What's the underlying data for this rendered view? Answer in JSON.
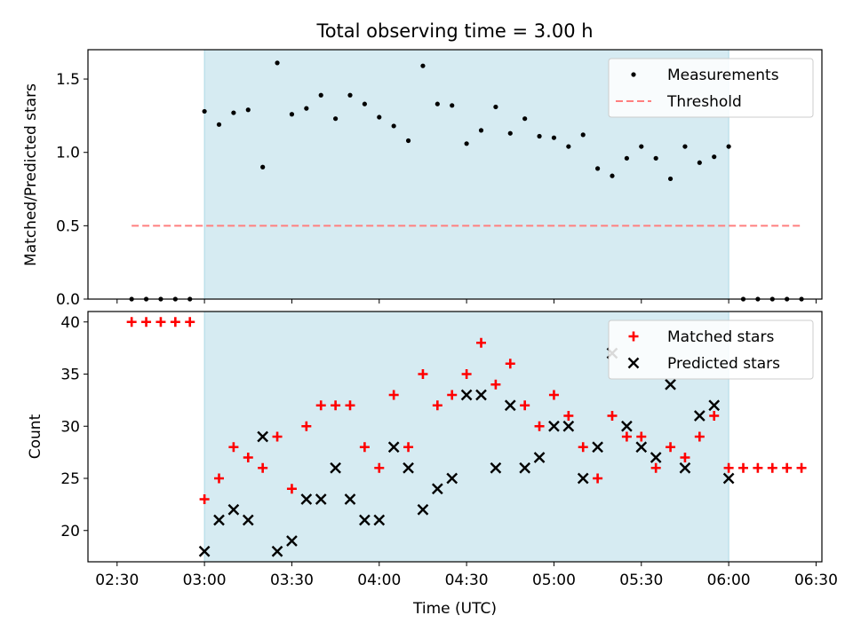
{
  "title": "Total observing time = 3.00 h",
  "colors": {
    "window": "#add8e6",
    "threshold": "#ff7f7f",
    "matched": "#ff0000",
    "predicted": "#000000",
    "measurement": "#000000"
  },
  "chart_data": [
    {
      "type": "scatter",
      "ylabel": "Matched/Predicted stars",
      "ylim": [
        0,
        1.7
      ],
      "yticks": [
        0.0,
        0.5,
        1.0,
        1.5
      ],
      "ytick_labels": [
        "0.0",
        "0.5",
        "1.0",
        "1.5"
      ],
      "xlim": [
        "02:20",
        "06:32"
      ],
      "observing_window": [
        "03:00",
        "06:00"
      ],
      "legend_position": "top-right",
      "series": [
        {
          "name": "Measurements",
          "marker": "dot",
          "x": [
            "02:35",
            "02:40",
            "02:45",
            "02:50",
            "02:55",
            "03:00",
            "03:05",
            "03:10",
            "03:15",
            "03:20",
            "03:25",
            "03:30",
            "03:35",
            "03:40",
            "03:45",
            "03:50",
            "03:55",
            "04:00",
            "04:05",
            "04:10",
            "04:15",
            "04:20",
            "04:25",
            "04:30",
            "04:35",
            "04:40",
            "04:45",
            "04:50",
            "04:55",
            "05:00",
            "05:05",
            "05:10",
            "05:15",
            "05:20",
            "05:25",
            "05:30",
            "05:35",
            "05:40",
            "05:45",
            "05:50",
            "05:55",
            "06:00",
            "06:05",
            "06:10",
            "06:15",
            "06:20",
            "06:25"
          ],
          "y": [
            0,
            0,
            0,
            0,
            0,
            1.28,
            1.19,
            1.27,
            1.29,
            0.9,
            1.61,
            1.26,
            1.3,
            1.39,
            1.23,
            1.39,
            1.33,
            1.24,
            1.18,
            1.08,
            1.59,
            1.33,
            1.32,
            1.06,
            1.15,
            1.31,
            1.13,
            1.23,
            1.11,
            1.1,
            1.04,
            1.12,
            0.89,
            0.84,
            0.96,
            1.04,
            0.96,
            0.82,
            1.04,
            0.93,
            0.97,
            1.04,
            0,
            0,
            0,
            0,
            0
          ]
        },
        {
          "name": "Threshold",
          "marker": "dashed-line",
          "x": [
            "02:35",
            "06:25"
          ],
          "y": [
            0.5,
            0.5
          ]
        }
      ]
    },
    {
      "type": "scatter",
      "ylabel": "Count",
      "xlabel": "Time (UTC)",
      "ylim": [
        17,
        41
      ],
      "yticks": [
        20,
        25,
        30,
        35,
        40
      ],
      "ytick_labels": [
        "20",
        "25",
        "30",
        "35",
        "40"
      ],
      "xlim": [
        "02:20",
        "06:32"
      ],
      "xticks": [
        "02:30",
        "03:00",
        "03:30",
        "04:00",
        "04:30",
        "05:00",
        "05:30",
        "06:00",
        "06:30"
      ],
      "xtick_labels": [
        "02:30",
        "03:00",
        "03:30",
        "04:00",
        "04:30",
        "05:00",
        "05:30",
        "06:00",
        "06:30"
      ],
      "observing_window": [
        "03:00",
        "06:00"
      ],
      "legend_position": "top-right",
      "series": [
        {
          "name": "Matched stars",
          "marker": "plus",
          "x": [
            "02:35",
            "02:40",
            "02:45",
            "02:50",
            "02:55",
            "03:00",
            "03:05",
            "03:10",
            "03:15",
            "03:20",
            "03:25",
            "03:30",
            "03:35",
            "03:40",
            "03:45",
            "03:50",
            "03:55",
            "04:00",
            "04:05",
            "04:10",
            "04:15",
            "04:20",
            "04:25",
            "04:30",
            "04:35",
            "04:40",
            "04:45",
            "04:50",
            "04:55",
            "05:00",
            "05:05",
            "05:10",
            "05:15",
            "05:20",
            "05:25",
            "05:30",
            "05:35",
            "05:40",
            "05:45",
            "05:50",
            "05:55",
            "06:00",
            "06:05",
            "06:10",
            "06:15",
            "06:20",
            "06:25"
          ],
          "y": [
            40,
            40,
            40,
            40,
            40,
            23,
            25,
            28,
            27,
            26,
            29,
            24,
            30,
            32,
            32,
            32,
            28,
            26,
            33,
            28,
            35,
            32,
            33,
            35,
            38,
            34,
            36,
            32,
            30,
            33,
            31,
            28,
            25,
            31,
            29,
            29,
            26,
            28,
            27,
            29,
            31,
            26,
            26,
            26,
            26,
            26,
            26
          ]
        },
        {
          "name": "Predicted stars",
          "marker": "x",
          "x": [
            "03:00",
            "03:05",
            "03:10",
            "03:15",
            "03:20",
            "03:25",
            "03:30",
            "03:35",
            "03:40",
            "03:45",
            "03:50",
            "03:55",
            "04:00",
            "04:05",
            "04:10",
            "04:15",
            "04:20",
            "04:25",
            "04:30",
            "04:35",
            "04:40",
            "04:45",
            "04:50",
            "04:55",
            "05:00",
            "05:05",
            "05:10",
            "05:15",
            "05:20",
            "05:25",
            "05:30",
            "05:35",
            "05:40",
            "05:45",
            "05:50",
            "05:55",
            "06:00"
          ],
          "y": [
            18,
            21,
            22,
            21,
            29,
            18,
            19,
            23,
            23,
            26,
            23,
            21,
            21,
            28,
            26,
            22,
            24,
            25,
            33,
            33,
            26,
            32,
            26,
            27,
            30,
            30,
            25,
            28,
            37,
            30,
            28,
            27,
            34,
            26,
            31,
            32,
            25
          ]
        }
      ]
    }
  ]
}
